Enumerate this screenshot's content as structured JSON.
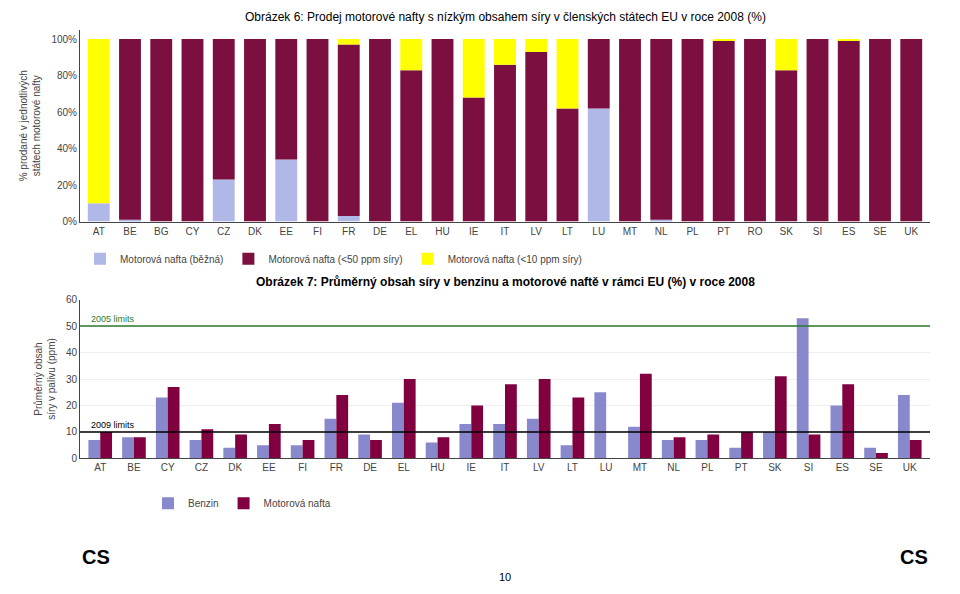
{
  "chart_data": [
    {
      "type": "bar",
      "stacked": true,
      "title": "Obrázek 6: Prodej motorové nafty s nízkým obsahem síry v členských státech EU v roce 2008 (%)",
      "ylabel": "% prodané v jednotlivých státech motorové nafty",
      "categories": [
        "AT",
        "BE",
        "BG",
        "CY",
        "CZ",
        "DK",
        "EE",
        "FI",
        "FR",
        "DE",
        "EL",
        "HU",
        "IE",
        "IT",
        "LV",
        "LT",
        "LU",
        "MT",
        "NL",
        "PL",
        "PT",
        "RO",
        "SK",
        "SI",
        "ES",
        "SE",
        "UK"
      ],
      "series": [
        {
          "name": "Motorová nafta (běžná)",
          "color": "#b0b8e8",
          "values": [
            10,
            1,
            0,
            0,
            23,
            0,
            34,
            0,
            3,
            0,
            0,
            0,
            0,
            0,
            0,
            0,
            62,
            0,
            1,
            0,
            0,
            0,
            0,
            0,
            0,
            0,
            0
          ]
        },
        {
          "name": "Motorová nafta (<50 ppm síry)",
          "color": "#7b1040",
          "values": [
            0,
            99,
            100,
            100,
            77,
            100,
            66,
            100,
            94,
            100,
            83,
            100,
            68,
            86,
            93,
            62,
            38,
            100,
            99,
            100,
            99,
            100,
            83,
            100,
            99,
            100,
            100
          ]
        },
        {
          "name": "Motorová nafta (<10 ppm síry)",
          "color": "#ffff00",
          "values": [
            90,
            0,
            0,
            0,
            0,
            0,
            0,
            0,
            3,
            0,
            17,
            0,
            32,
            14,
            7,
            38,
            0,
            0,
            0,
            0,
            1,
            0,
            17,
            0,
            1,
            0,
            0
          ]
        }
      ],
      "ylim": [
        0,
        105
      ],
      "yticks": [
        {
          "value": 0,
          "label": "0%"
        },
        {
          "value": 20,
          "label": "20%"
        },
        {
          "value": 40,
          "label": "40%"
        },
        {
          "value": 60,
          "label": "60%"
        },
        {
          "value": 80,
          "label": "80%"
        },
        {
          "value": 100,
          "label": "100%"
        }
      ],
      "grid": false,
      "legend": "lower left"
    },
    {
      "type": "bar",
      "title": "Obrázek 7: Průměrný obsah síry v benzinu a motorové naftě v rámci EU (%) v roce 2008",
      "ylabel": "Průměrný obsah síry v palivu (ppm)",
      "categories": [
        "AT",
        "BE",
        "CY",
        "CZ",
        "DK",
        "EE",
        "FI",
        "FR",
        "DE",
        "EL",
        "HU",
        "IE",
        "IT",
        "LV",
        "LT",
        "LU",
        "MT",
        "NL",
        "PL",
        "PT",
        "SK",
        "SI",
        "ES",
        "SE",
        "UK"
      ],
      "series": [
        {
          "name": "Benzin",
          "color": "#8888cc",
          "values": [
            7,
            8,
            23,
            7,
            4,
            5,
            5,
            15,
            9,
            21,
            6,
            13,
            13,
            15,
            5,
            25,
            12,
            7,
            7,
            4,
            10,
            53,
            20,
            4,
            24
          ]
        },
        {
          "name": "Motorová nafta",
          "color": "#800040",
          "values": [
            10,
            8,
            27,
            11,
            9,
            13,
            7,
            24,
            7,
            30,
            8,
            20,
            28,
            30,
            23,
            0,
            32,
            8,
            9,
            10,
            31,
            9,
            28,
            2,
            7
          ]
        }
      ],
      "ylim": [
        0,
        60
      ],
      "yticks": [
        0,
        10,
        20,
        30,
        40,
        50,
        60
      ],
      "grid": true,
      "legend": "lower left",
      "reference_lines": [
        {
          "value": 50,
          "label": "2005 limits",
          "color": "#2d7a2d"
        },
        {
          "value": 10,
          "label": "2009 limits",
          "color": "#000000"
        }
      ]
    }
  ],
  "annotations": [
    {
      "text": "CS"
    },
    {
      "text": "CS"
    },
    {
      "text": "10"
    }
  ]
}
